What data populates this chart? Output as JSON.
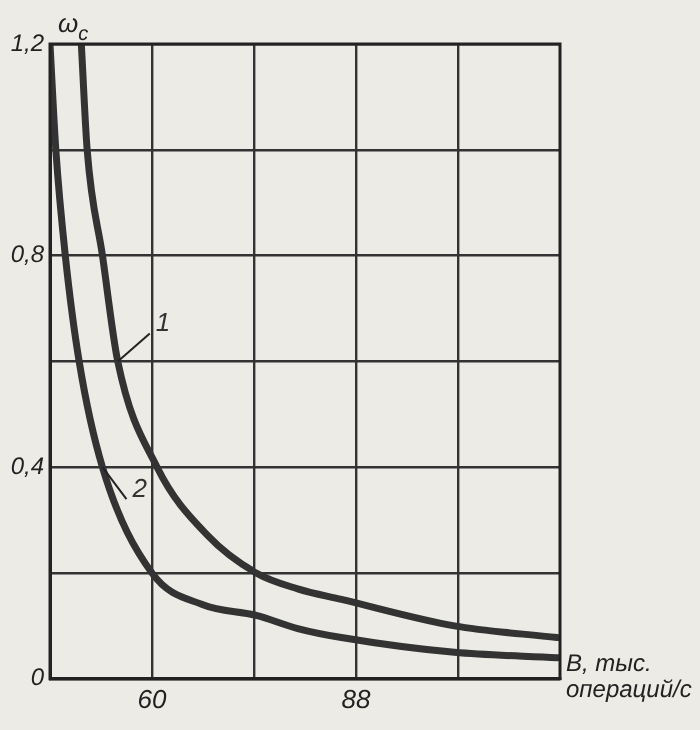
{
  "chart_data": {
    "type": "line",
    "xlabel": "B, тыс. операций/с",
    "ylabel": "ω$_{c}$",
    "xlim": [
      46,
      116
    ],
    "xticks": [
      {
        "value": 60,
        "label": "60"
      },
      {
        "value": 74,
        "label": null
      },
      {
        "value": 88,
        "label": "88"
      },
      {
        "value": 102,
        "label": null
      }
    ],
    "ylim": [
      0,
      1.2
    ],
    "yticks": [
      {
        "value": 0,
        "label": "0"
      },
      {
        "value": 0.2,
        "label": null
      },
      {
        "value": 0.4,
        "label": "0,4"
      },
      {
        "value": 0.6,
        "label": null
      },
      {
        "value": 0.8,
        "label": "0,8"
      },
      {
        "value": 1.0,
        "label": null
      },
      {
        "value": 1.2,
        "label": "1,2"
      }
    ],
    "grid": true,
    "legend": false,
    "marker": "none",
    "line_style": "solid",
    "series": [
      {
        "name": "1",
        "color": "#333333",
        "x": [
          50.3,
          51.1,
          53.2,
          55.3,
          60.7,
          67.7,
          74.3,
          80,
          86,
          101.5,
          115.6
        ],
        "values": [
          1.2,
          1.0,
          0.8,
          0.6,
          0.4,
          0.27,
          0.2,
          0.17,
          0.15,
          0.1,
          0.078
        ]
      },
      {
        "name": "2",
        "color": "#333333",
        "x": [
          46,
          46.8,
          48.1,
          50,
          53.2,
          60,
          67,
          74.3,
          80,
          86,
          101.5,
          115.6
        ],
        "values": [
          1.2,
          1.0,
          0.8,
          0.6,
          0.4,
          0.2,
          0.14,
          0.12,
          0.095,
          0.078,
          0.05,
          0.04
        ]
      }
    ]
  }
}
